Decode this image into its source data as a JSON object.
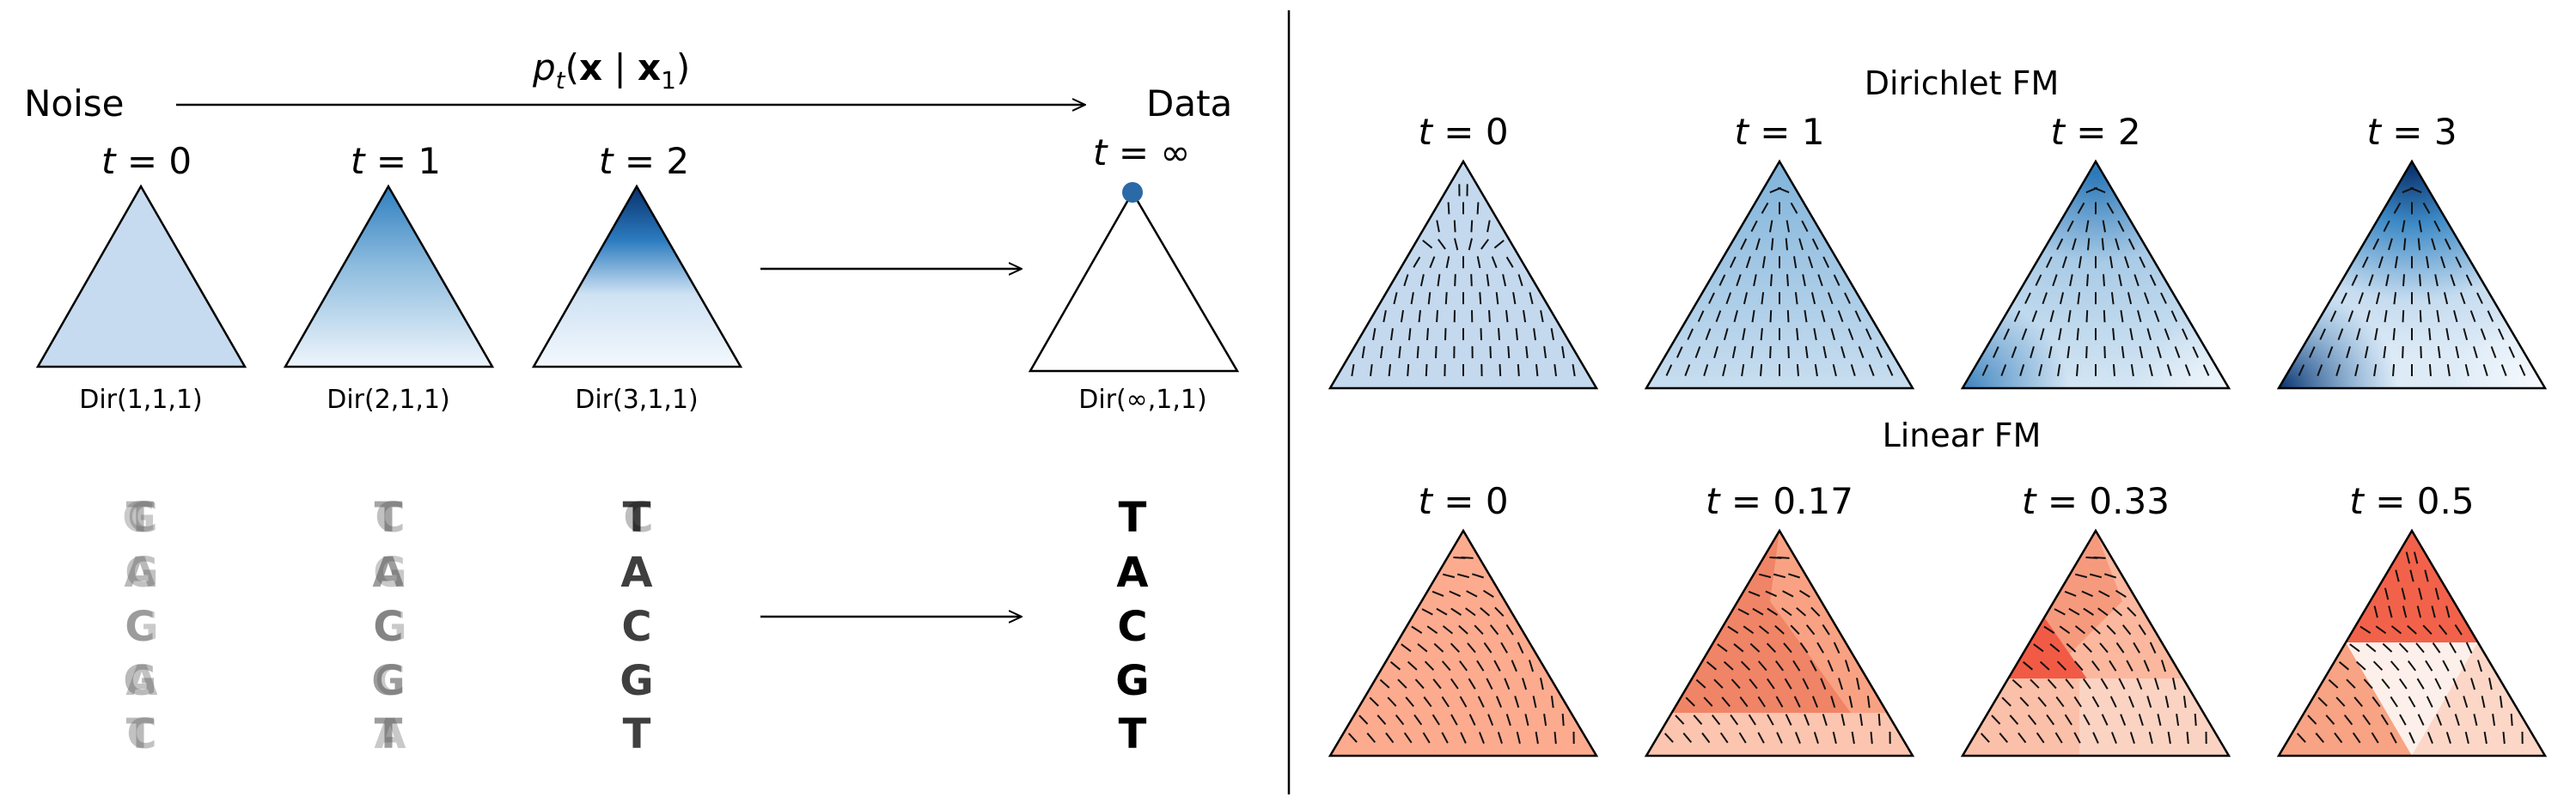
{
  "left": {
    "noise_label": "Noise",
    "data_label": "Data",
    "path_label": "p_t(x | x_1)",
    "path_label_parts": {
      "p": "p",
      "t": "t",
      "open": "(",
      "x": "x",
      "bar": " | ",
      "x1": "x",
      "one": "1",
      "close": ")"
    },
    "panels": [
      {
        "t": "0",
        "dist": "Dir(1,1,1)"
      },
      {
        "t": "1",
        "dist": "Dir(2,1,1)"
      },
      {
        "t": "2",
        "dist": "Dir(3,1,1)"
      },
      {
        "t": "∞",
        "dist": "Dir(∞,1,1)"
      }
    ],
    "sequence": [
      "T",
      "A",
      "C",
      "G",
      "T"
    ]
  },
  "right": {
    "dirichlet": {
      "title": "Dirichlet FM",
      "times": [
        "0",
        "1",
        "2",
        "3"
      ]
    },
    "linear": {
      "title": "Linear FM",
      "times": [
        "0",
        "0.17",
        "0.33",
        "0.5"
      ]
    }
  },
  "colors": {
    "blue_light": "#c6dbef",
    "blue_dark": "#08306b",
    "blue_point": "#2b6aa6",
    "red_light": "#fcbba1",
    "red_mid": "#f4866a",
    "red_dark": "#ef3b2c"
  }
}
